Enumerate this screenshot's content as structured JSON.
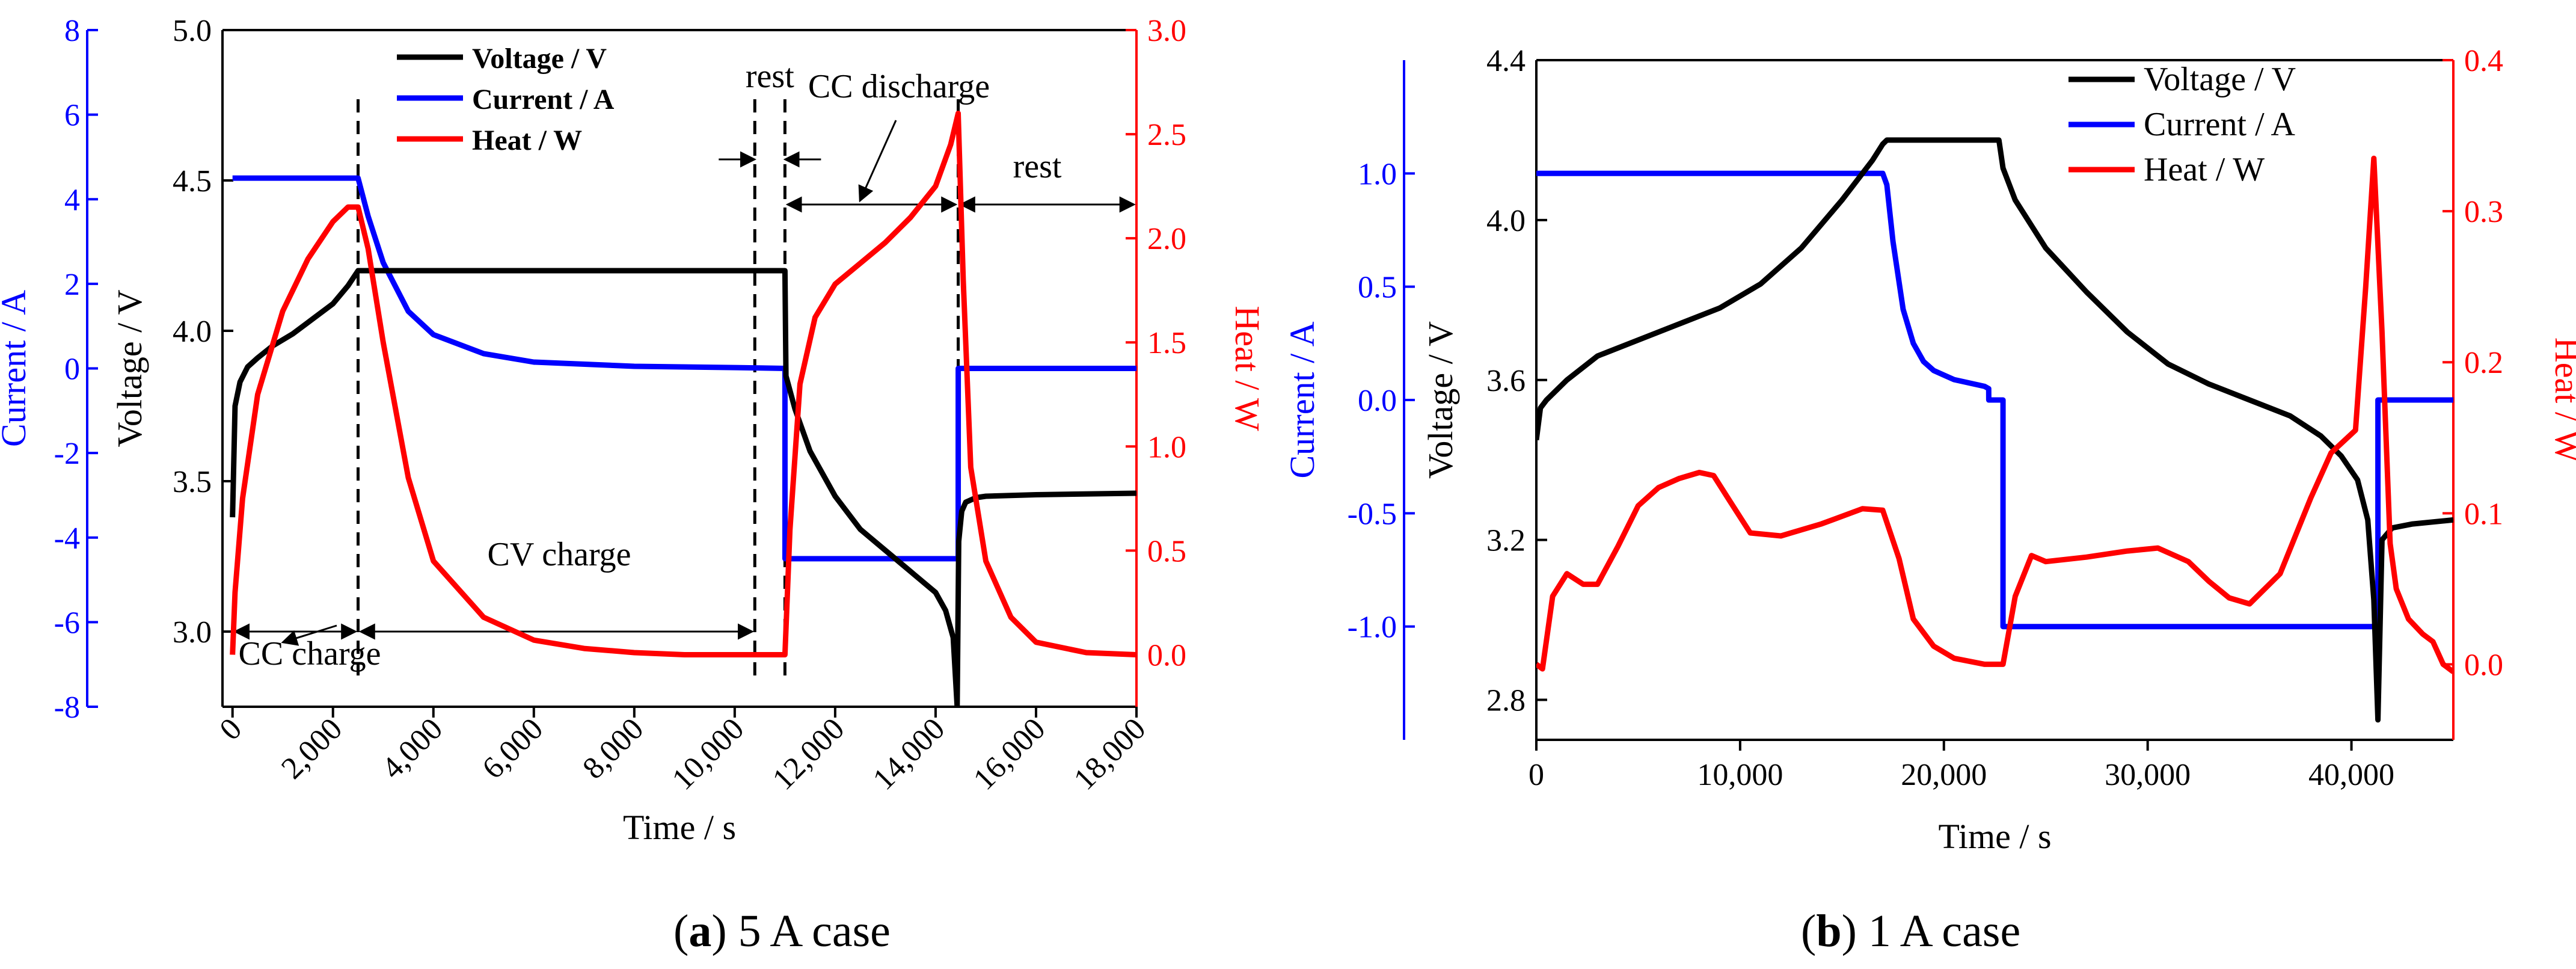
{
  "figure": {
    "colors": {
      "voltage": "#000000",
      "current": "#0000ff",
      "heat": "#ff0000"
    }
  },
  "chart_data": [
    {
      "type": "line",
      "caption_letter": "a",
      "caption_text": "5 A case",
      "xlabel": "Time / s",
      "xlim": [
        -200,
        18000
      ],
      "xticks": [
        0,
        2000,
        4000,
        6000,
        8000,
        10000,
        12000,
        14000,
        16000,
        18000
      ],
      "xtick_labels": [
        "0",
        "2,000",
        "4,000",
        "6,000",
        "8,000",
        "10,000",
        "12,000",
        "14,000",
        "16,000",
        "18,000"
      ],
      "axes": {
        "voltage": {
          "label": "Voltage / V",
          "ylim": [
            2.75,
            5.0
          ],
          "ticks": [
            3.0,
            3.5,
            4.0,
            4.5,
            5.0
          ],
          "tick_labels": [
            "3.0",
            "3.5",
            "4.0",
            "4.5",
            "5.0"
          ]
        },
        "current": {
          "label": "Current / A",
          "ylim": [
            -8,
            8
          ],
          "ticks": [
            -8,
            -6,
            -4,
            -2,
            0,
            2,
            4,
            6,
            8
          ],
          "tick_labels": [
            "-8",
            "-6",
            "-4",
            "-2",
            "0",
            "2",
            "4",
            "6",
            "8"
          ]
        },
        "heat": {
          "label": "Heat / W",
          "ylim": [
            -0.25,
            3.0
          ],
          "ticks": [
            0.0,
            0.5,
            1.0,
            1.5,
            2.0,
            2.5,
            3.0
          ],
          "tick_labels": [
            "0.0",
            "0.5",
            "1.0",
            "1.5",
            "2.0",
            "2.5",
            "3.0"
          ]
        }
      },
      "legend": {
        "position": "top-center",
        "bold": true,
        "entries": [
          "Voltage / V",
          "Current / A",
          "Heat / W"
        ]
      },
      "series": [
        {
          "name": "Voltage / V",
          "axis": "voltage",
          "color": "#000000",
          "x": [
            0,
            50,
            150,
            300,
            500,
            800,
            1200,
            1600,
            2000,
            2300,
            2500,
            2550,
            11000,
            11020,
            11200,
            11500,
            12000,
            12500,
            13000,
            13500,
            14000,
            14200,
            14350,
            14430,
            14460,
            14520,
            14600,
            14800,
            15000,
            16000,
            18000
          ],
          "y": [
            3.38,
            3.75,
            3.83,
            3.88,
            3.91,
            3.95,
            3.99,
            4.04,
            4.09,
            4.15,
            4.2,
            4.2,
            4.2,
            3.85,
            3.74,
            3.6,
            3.45,
            3.34,
            3.27,
            3.2,
            3.13,
            3.07,
            2.98,
            2.75,
            3.3,
            3.4,
            3.43,
            3.445,
            3.45,
            3.455,
            3.46
          ]
        },
        {
          "name": "Current / A",
          "axis": "current",
          "color": "#0000ff",
          "x": [
            0,
            2500,
            2700,
            3000,
            3500,
            4000,
            5000,
            6000,
            8000,
            10000,
            11000,
            11001,
            14450,
            14451,
            18000
          ],
          "y": [
            4.5,
            4.5,
            3.6,
            2.5,
            1.35,
            0.8,
            0.35,
            0.15,
            0.05,
            0.02,
            0.0,
            -4.5,
            -4.5,
            0.0,
            0.0
          ]
        },
        {
          "name": "Heat / W",
          "axis": "heat",
          "color": "#ff0000",
          "x": [
            0,
            50,
            200,
            500,
            1000,
            1500,
            2000,
            2300,
            2500,
            2700,
            3000,
            3500,
            4000,
            5000,
            6000,
            7000,
            8000,
            9000,
            10000,
            11000,
            11100,
            11300,
            11600,
            12000,
            12500,
            13000,
            13500,
            14000,
            14300,
            14450,
            14550,
            14700,
            15000,
            15500,
            16000,
            17000,
            18000
          ],
          "y": [
            0.0,
            0.3,
            0.75,
            1.25,
            1.65,
            1.9,
            2.08,
            2.15,
            2.15,
            1.95,
            1.5,
            0.85,
            0.45,
            0.18,
            0.07,
            0.03,
            0.01,
            0.0,
            0.0,
            0.0,
            0.6,
            1.3,
            1.62,
            1.78,
            1.88,
            1.98,
            2.1,
            2.25,
            2.45,
            2.6,
            1.8,
            0.9,
            0.45,
            0.18,
            0.06,
            0.01,
            0.0
          ]
        }
      ],
      "guides": {
        "x": [
          2500,
          10400,
          11000,
          14450
        ],
        "y_voltage": 3.0
      },
      "annotations": [
        {
          "text": "CC charge",
          "arrow_from_x": 0,
          "arrow_to_x": 2500
        },
        {
          "text": "CV charge",
          "arrow_from_x": 2500,
          "arrow_to_x": 10400
        },
        {
          "text": "rest",
          "arrow_from_x": 10400,
          "arrow_to_x": 11000
        },
        {
          "text": "CC discharge",
          "arrow_from_x": 11000,
          "arrow_to_x": 14450
        },
        {
          "text": "rest",
          "arrow_from_x": 14450,
          "arrow_to_x": 18000
        }
      ]
    },
    {
      "type": "line",
      "caption_letter": "b",
      "caption_text": "1 A case",
      "xlabel": "Time / s",
      "xlim": [
        0,
        45000
      ],
      "xticks": [
        0,
        10000,
        20000,
        30000,
        40000
      ],
      "xtick_labels": [
        "0",
        "10,000",
        "20,000",
        "30,000",
        "40,000"
      ],
      "axes": {
        "voltage": {
          "label": "Voltage / V",
          "ylim": [
            2.7,
            4.4
          ],
          "ticks": [
            2.8,
            3.2,
            3.6,
            4.0,
            4.4
          ],
          "tick_labels": [
            "2.8",
            "3.2",
            "3.6",
            "4.0",
            "4.4"
          ]
        },
        "current": {
          "label": "Current / A",
          "ylim": [
            -1.5,
            1.5
          ],
          "ticks": [
            -1.0,
            -0.5,
            0.0,
            0.5,
            1.0
          ],
          "tick_labels": [
            "-1.0",
            "-0.5",
            "0.0",
            "0.5",
            "1.0"
          ]
        },
        "heat": {
          "label": "Heat / W",
          "ylim": [
            -0.05,
            0.4
          ],
          "ticks": [
            0.0,
            0.1,
            0.2,
            0.3,
            0.4
          ],
          "tick_labels": [
            "0.0",
            "0.1",
            "0.2",
            "0.3",
            "0.4"
          ]
        }
      },
      "legend": {
        "position": "top-right",
        "bold": false,
        "entries": [
          "Voltage / V",
          "Current / A",
          "Heat / W"
        ]
      },
      "series": [
        {
          "name": "Voltage / V",
          "axis": "voltage",
          "color": "#000000",
          "x": [
            0,
            200,
            500,
            1500,
            3000,
            5000,
            7000,
            9000,
            11000,
            13000,
            15000,
            16500,
            17000,
            17200,
            22700,
            22900,
            23500,
            25000,
            27000,
            29000,
            31000,
            33000,
            35000,
            37000,
            38500,
            39500,
            40300,
            40800,
            41100,
            41300,
            41500,
            42000,
            43000,
            45000
          ],
          "y": [
            3.45,
            3.53,
            3.55,
            3.6,
            3.66,
            3.7,
            3.74,
            3.78,
            3.84,
            3.93,
            4.05,
            4.15,
            4.19,
            4.2,
            4.2,
            4.13,
            4.05,
            3.93,
            3.82,
            3.72,
            3.64,
            3.59,
            3.55,
            3.51,
            3.46,
            3.41,
            3.35,
            3.25,
            3.05,
            2.75,
            3.2,
            3.23,
            3.24,
            3.25
          ]
        },
        {
          "name": "Current / A",
          "axis": "current",
          "color": "#0000ff",
          "x": [
            0,
            17000,
            17200,
            17500,
            18000,
            18500,
            19000,
            19500,
            20000,
            20500,
            21000,
            21500,
            22000,
            22200,
            22201,
            22900,
            22901,
            41300,
            41301,
            45000
          ],
          "y": [
            1.0,
            1.0,
            0.95,
            0.7,
            0.4,
            0.25,
            0.17,
            0.13,
            0.11,
            0.09,
            0.08,
            0.07,
            0.06,
            0.05,
            0.0,
            0.0,
            -1.0,
            -1.0,
            0.0,
            0.0
          ]
        },
        {
          "name": "Heat / W",
          "axis": "heat",
          "color": "#ff0000",
          "x": [
            0,
            300,
            800,
            1500,
            2300,
            3000,
            4000,
            5000,
            6000,
            7000,
            8000,
            8700,
            9500,
            10500,
            12000,
            14000,
            16000,
            17000,
            17800,
            18500,
            19500,
            20500,
            22000,
            22900,
            23500,
            24300,
            25000,
            27000,
            29000,
            30500,
            32000,
            33000,
            34000,
            35000,
            36500,
            38000,
            39000,
            40200,
            40700,
            41100,
            41500,
            41900,
            42200,
            42800,
            43500,
            44000,
            44500,
            45000
          ],
          "y": [
            0.0,
            -0.003,
            0.045,
            0.06,
            0.053,
            0.053,
            0.078,
            0.105,
            0.117,
            0.123,
            0.127,
            0.125,
            0.108,
            0.087,
            0.085,
            0.093,
            0.103,
            0.102,
            0.07,
            0.03,
            0.012,
            0.004,
            0.0,
            0.0,
            0.045,
            0.072,
            0.068,
            0.071,
            0.075,
            0.077,
            0.068,
            0.055,
            0.044,
            0.04,
            0.06,
            0.11,
            0.14,
            0.155,
            0.25,
            0.335,
            0.22,
            0.08,
            0.05,
            0.03,
            0.02,
            0.015,
            0.0,
            -0.005
          ]
        }
      ]
    }
  ]
}
